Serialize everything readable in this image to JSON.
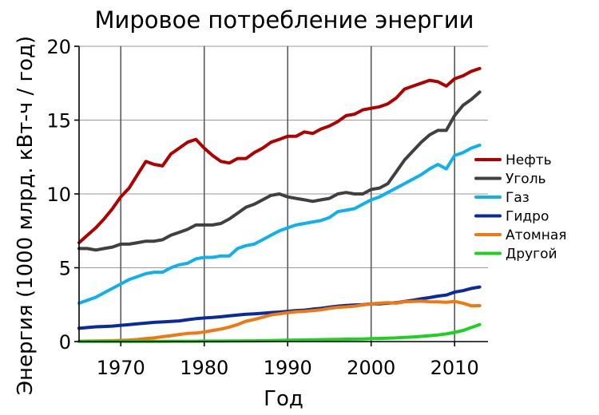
{
  "chart_data": {
    "type": "line",
    "title": "Мировое потребление энергии",
    "xlabel": "Год",
    "ylabel": "Энергия (1000 млрд. кВт-ч / год)",
    "xlim": [
      1965,
      2014
    ],
    "ylim": [
      0,
      20
    ],
    "xticks": [
      {
        "value": 1970,
        "label": "1970"
      },
      {
        "value": 1980,
        "label": "1980"
      },
      {
        "value": 1990,
        "label": "1990"
      },
      {
        "value": 2000,
        "label": "2000"
      },
      {
        "value": 2010,
        "label": "2010"
      }
    ],
    "yticks": [
      {
        "value": 0,
        "label": "0"
      },
      {
        "value": 5,
        "label": "5"
      },
      {
        "value": 10,
        "label": "10"
      },
      {
        "value": 15,
        "label": "15"
      },
      {
        "value": 20,
        "label": "20"
      }
    ],
    "grid": true,
    "legend_position": "right",
    "x": [
      1965,
      1966,
      1967,
      1968,
      1969,
      1970,
      1971,
      1972,
      1973,
      1974,
      1975,
      1976,
      1977,
      1978,
      1979,
      1980,
      1981,
      1982,
      1983,
      1984,
      1985,
      1986,
      1987,
      1988,
      1989,
      1990,
      1991,
      1992,
      1993,
      1994,
      1995,
      1996,
      1997,
      1998,
      1999,
      2000,
      2001,
      2002,
      2003,
      2004,
      2005,
      2006,
      2007,
      2008,
      2009,
      2010,
      2011,
      2012,
      2013
    ],
    "series": [
      {
        "name": "Нефть",
        "color": "#b00000",
        "values": [
          6.7,
          7.2,
          7.7,
          8.3,
          9.0,
          9.8,
          10.4,
          11.3,
          12.2,
          12.0,
          11.9,
          12.7,
          13.1,
          13.5,
          13.7,
          13.1,
          12.6,
          12.2,
          12.1,
          12.4,
          12.4,
          12.8,
          13.1,
          13.5,
          13.7,
          13.9,
          13.9,
          14.2,
          14.1,
          14.4,
          14.6,
          14.9,
          15.3,
          15.4,
          15.7,
          15.8,
          15.9,
          16.1,
          16.5,
          17.1,
          17.3,
          17.5,
          17.7,
          17.6,
          17.3,
          17.8,
          18.0,
          18.3,
          18.5
        ]
      },
      {
        "name": "Уголь",
        "color": "#404040",
        "values": [
          6.3,
          6.3,
          6.2,
          6.3,
          6.4,
          6.6,
          6.6,
          6.7,
          6.8,
          6.8,
          6.9,
          7.2,
          7.4,
          7.6,
          7.9,
          7.9,
          7.9,
          8.0,
          8.3,
          8.7,
          9.1,
          9.3,
          9.6,
          9.9,
          10.0,
          9.8,
          9.7,
          9.6,
          9.5,
          9.6,
          9.7,
          10.0,
          10.1,
          10.0,
          10.0,
          10.3,
          10.4,
          10.7,
          11.5,
          12.3,
          12.9,
          13.5,
          14.0,
          14.3,
          14.3,
          15.3,
          16.0,
          16.4,
          16.9
        ]
      },
      {
        "name": "Газ",
        "color": "#10b0ea",
        "values": [
          2.6,
          2.8,
          3.0,
          3.3,
          3.6,
          3.9,
          4.2,
          4.4,
          4.6,
          4.7,
          4.7,
          5.0,
          5.2,
          5.3,
          5.6,
          5.7,
          5.7,
          5.8,
          5.8,
          6.3,
          6.5,
          6.6,
          6.9,
          7.2,
          7.5,
          7.7,
          7.9,
          8.0,
          8.1,
          8.2,
          8.4,
          8.8,
          8.9,
          9.0,
          9.3,
          9.6,
          9.8,
          10.1,
          10.4,
          10.7,
          11.0,
          11.3,
          11.7,
          12.0,
          11.7,
          12.6,
          12.8,
          13.1,
          13.3
        ]
      },
      {
        "name": "Гидро",
        "color": "#0a2aa0",
        "values": [
          0.9,
          0.95,
          1.0,
          1.02,
          1.05,
          1.1,
          1.15,
          1.2,
          1.25,
          1.3,
          1.33,
          1.36,
          1.4,
          1.48,
          1.55,
          1.6,
          1.63,
          1.68,
          1.74,
          1.8,
          1.85,
          1.88,
          1.92,
          1.97,
          2.0,
          2.05,
          2.1,
          2.13,
          2.2,
          2.25,
          2.33,
          2.4,
          2.45,
          2.48,
          2.5,
          2.55,
          2.55,
          2.6,
          2.63,
          2.72,
          2.8,
          2.9,
          2.98,
          3.08,
          3.15,
          3.35,
          3.45,
          3.6,
          3.7
        ]
      },
      {
        "name": "Атомная",
        "color": "#f07810",
        "values": [
          0.02,
          0.03,
          0.04,
          0.05,
          0.06,
          0.08,
          0.1,
          0.14,
          0.2,
          0.25,
          0.33,
          0.4,
          0.48,
          0.55,
          0.58,
          0.65,
          0.75,
          0.85,
          0.98,
          1.15,
          1.38,
          1.5,
          1.65,
          1.8,
          1.88,
          1.95,
          2.02,
          2.05,
          2.1,
          2.15,
          2.25,
          2.32,
          2.35,
          2.4,
          2.48,
          2.55,
          2.6,
          2.63,
          2.6,
          2.7,
          2.72,
          2.74,
          2.7,
          2.69,
          2.66,
          2.72,
          2.6,
          2.42,
          2.43
        ]
      },
      {
        "name": "Другой",
        "color": "#20d020",
        "values": [
          0.01,
          0.01,
          0.01,
          0.01,
          0.01,
          0.01,
          0.01,
          0.01,
          0.01,
          0.01,
          0.01,
          0.02,
          0.02,
          0.02,
          0.02,
          0.03,
          0.03,
          0.03,
          0.04,
          0.04,
          0.05,
          0.05,
          0.06,
          0.07,
          0.08,
          0.09,
          0.1,
          0.11,
          0.12,
          0.13,
          0.14,
          0.15,
          0.16,
          0.17,
          0.18,
          0.2,
          0.21,
          0.23,
          0.25,
          0.28,
          0.31,
          0.35,
          0.4,
          0.45,
          0.52,
          0.62,
          0.75,
          0.95,
          1.15
        ]
      }
    ]
  }
}
